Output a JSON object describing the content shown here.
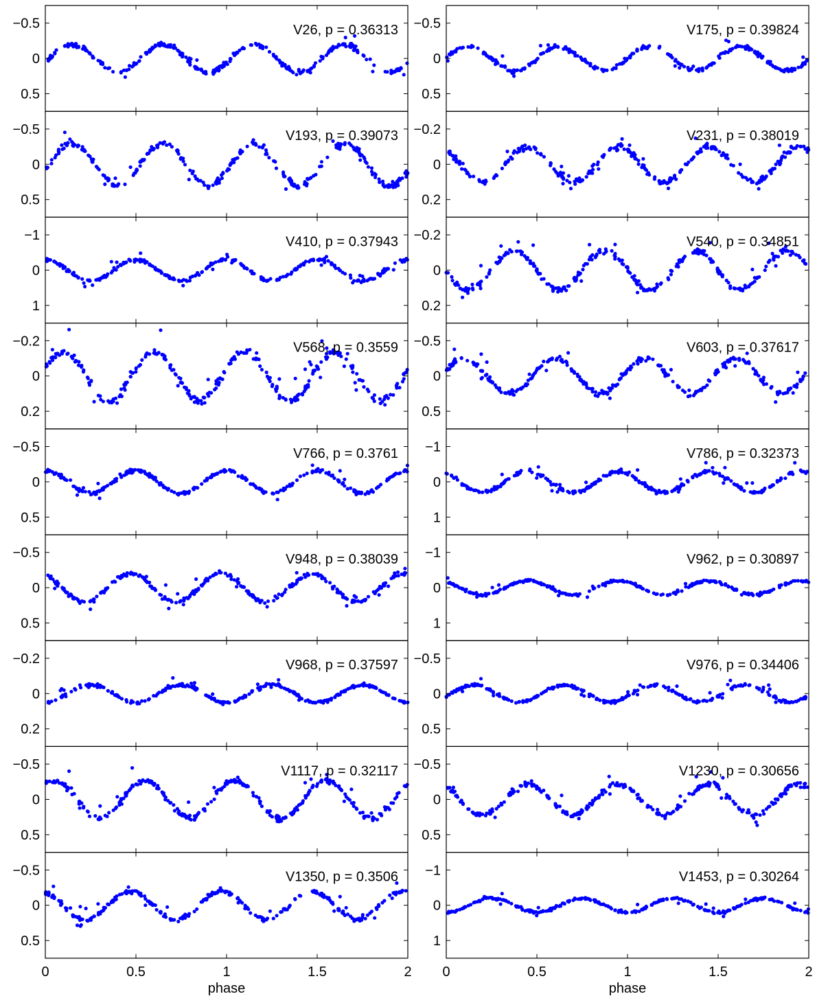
{
  "chart_data": {
    "type": "scatter",
    "marker_color": "#0000ff",
    "xlabel": "phase",
    "xlim": [
      0,
      2
    ],
    "x_ticks": [
      0,
      0.5,
      1,
      1.5,
      2
    ],
    "x_tick_labels": [
      "0",
      "0.5",
      "1",
      "1.5",
      "2"
    ],
    "y_inverted": true,
    "panels": [
      {
        "column": 0,
        "row": 0,
        "label": "V26, p = 0.36313",
        "ylim": [
          -0.75,
          0.75
        ],
        "y_ticks": [
          -0.5,
          0,
          0.5
        ],
        "y_tick_labels": [
          "−0.5",
          "0",
          "0.5"
        ],
        "amplitude": 0.2,
        "minima": [
          0.4,
          0.9,
          1.4,
          1.9
        ],
        "maxima": [
          0.15,
          0.65,
          1.15,
          1.65
        ]
      },
      {
        "column": 1,
        "row": 0,
        "label": "V175, p = 0.39824",
        "ylim": [
          -0.75,
          0.75
        ],
        "y_ticks": [
          -0.5,
          0,
          0.5
        ],
        "y_tick_labels": [
          "−0.5",
          "0",
          "0.5"
        ],
        "amplitude": 0.17,
        "minima": [
          0.38,
          0.88,
          1.38,
          1.88
        ],
        "maxima": [
          0.12,
          0.62,
          1.12,
          1.62
        ]
      },
      {
        "column": 0,
        "row": 1,
        "label": "V193, p = 0.39073",
        "ylim": [
          -0.75,
          0.75
        ],
        "y_ticks": [
          -0.5,
          0,
          0.5
        ],
        "y_tick_labels": [
          "−0.5",
          "0",
          "0.5"
        ],
        "amplitude": 0.3,
        "minima": [
          0.4,
          0.9,
          1.4,
          1.9
        ],
        "maxima": [
          0.15,
          0.65,
          1.15,
          1.65
        ]
      },
      {
        "column": 1,
        "row": 1,
        "label": "V231, p = 0.38019",
        "ylim": [
          -0.3,
          0.3
        ],
        "y_ticks": [
          -0.2,
          0,
          0.2
        ],
        "y_tick_labels": [
          "−0.2",
          "0",
          "0.2"
        ],
        "amplitude": 0.1,
        "minima": [
          0.2,
          0.7,
          1.2,
          1.7
        ],
        "maxima": [
          0.45,
          0.95,
          1.45,
          1.95
        ]
      },
      {
        "column": 0,
        "row": 2,
        "label": "V410, p = 0.37943",
        "ylim": [
          -1.5,
          1.5
        ],
        "y_ticks": [
          -1,
          0,
          1
        ],
        "y_tick_labels": [
          "−1",
          "0",
          "1"
        ],
        "amplitude": 0.3,
        "minima": [
          0.25,
          0.75,
          1.25,
          1.75
        ],
        "maxima": [
          0.0,
          0.5,
          1.0,
          1.5,
          2.0
        ]
      },
      {
        "column": 1,
        "row": 2,
        "label": "V540, p = 0.34851",
        "ylim": [
          -0.3,
          0.3
        ],
        "y_ticks": [
          -0.2,
          0,
          0.2
        ],
        "y_tick_labels": [
          "−0.2",
          "0",
          "0.2"
        ],
        "amplitude": 0.11,
        "minima": [
          0.12,
          0.62,
          1.12,
          1.62
        ],
        "maxima": [
          0.38,
          0.88,
          1.38,
          1.88
        ]
      },
      {
        "column": 0,
        "row": 3,
        "label": "V568, p = 0.3559",
        "ylim": [
          -0.3,
          0.3
        ],
        "y_ticks": [
          -0.2,
          0,
          0.2
        ],
        "y_tick_labels": [
          "−0.2",
          "0",
          "0.2"
        ],
        "amplitude": 0.14,
        "minima": [
          0.35,
          0.85,
          1.35,
          1.85
        ],
        "maxima": [
          0.1,
          0.6,
          1.1,
          1.6
        ]
      },
      {
        "column": 1,
        "row": 3,
        "label": "V603, p = 0.37617",
        "ylim": [
          -0.75,
          0.75
        ],
        "y_ticks": [
          -0.5,
          0,
          0.5
        ],
        "y_tick_labels": [
          "−0.5",
          "0",
          "0.5"
        ],
        "amplitude": 0.25,
        "minima": [
          0.35,
          0.85,
          1.35,
          1.85
        ],
        "maxima": [
          0.1,
          0.6,
          1.1,
          1.6
        ]
      },
      {
        "column": 0,
        "row": 4,
        "label": "V766, p = 0.3761",
        "ylim": [
          -0.75,
          0.75
        ],
        "y_ticks": [
          -0.5,
          0,
          0.5
        ],
        "y_tick_labels": [
          "−0.5",
          "0",
          "0.5"
        ],
        "amplitude": 0.16,
        "minima": [
          0.25,
          0.75,
          1.25,
          1.75
        ],
        "maxima": [
          0.0,
          0.5,
          1.0,
          1.5,
          2.0
        ]
      },
      {
        "column": 1,
        "row": 4,
        "label": "V786, p = 0.32373",
        "ylim": [
          -1.5,
          1.5
        ],
        "y_ticks": [
          -1,
          0,
          1
        ],
        "y_tick_labels": [
          "−1",
          "0",
          "1"
        ],
        "amplitude": 0.3,
        "minima": [
          0.2,
          0.7,
          1.2,
          1.7
        ],
        "maxima": [
          0.45,
          0.95,
          1.45,
          1.95
        ]
      },
      {
        "column": 0,
        "row": 5,
        "label": "V948, p = 0.38039",
        "ylim": [
          -0.75,
          0.75
        ],
        "y_ticks": [
          -0.5,
          0,
          0.5
        ],
        "y_tick_labels": [
          "−0.5",
          "0",
          "0.5"
        ],
        "amplitude": 0.2,
        "minima": [
          0.22,
          0.72,
          1.22,
          1.72
        ],
        "maxima": [
          0.47,
          0.97,
          1.47,
          1.97
        ]
      },
      {
        "column": 1,
        "row": 5,
        "label": "V962, p = 0.30897",
        "ylim": [
          -1.5,
          1.5
        ],
        "y_ticks": [
          -1,
          0,
          1
        ],
        "y_tick_labels": [
          "−1",
          "0",
          "1"
        ],
        "amplitude": 0.2,
        "minima": [
          0.2,
          0.7,
          1.2,
          1.7
        ],
        "maxima": [
          0.45,
          0.95,
          1.45,
          1.95
        ]
      },
      {
        "column": 0,
        "row": 6,
        "label": "V968, p = 0.37597",
        "ylim": [
          -0.3,
          0.3
        ],
        "y_ticks": [
          -0.2,
          0,
          0.2
        ],
        "y_tick_labels": [
          "−0.2",
          "0",
          "0.2"
        ],
        "amplitude": 0.05,
        "minima": [
          0.0,
          0.5,
          1.0,
          1.5,
          2.0
        ],
        "maxima": [
          0.25,
          0.75,
          1.25,
          1.75
        ]
      },
      {
        "column": 1,
        "row": 6,
        "label": "V976, p = 0.34406",
        "ylim": [
          -0.75,
          0.75
        ],
        "y_ticks": [
          -0.5,
          0,
          0.5
        ],
        "y_tick_labels": [
          "−0.5",
          "0",
          "0.5"
        ],
        "amplitude": 0.12,
        "minima": [
          0.4,
          0.9,
          1.4,
          1.9
        ],
        "maxima": [
          0.15,
          0.65,
          1.15,
          1.65
        ]
      },
      {
        "column": 0,
        "row": 7,
        "label": "V1117, p = 0.32117",
        "ylim": [
          -0.75,
          0.75
        ],
        "y_ticks": [
          -0.5,
          0,
          0.5
        ],
        "y_tick_labels": [
          "−0.5",
          "0",
          "0.5"
        ],
        "amplitude": 0.27,
        "minima": [
          0.3,
          0.8,
          1.3,
          1.8
        ],
        "maxima": [
          0.05,
          0.55,
          1.05,
          1.55
        ]
      },
      {
        "column": 1,
        "row": 7,
        "label": "V1230, p = 0.30656",
        "ylim": [
          -0.75,
          0.75
        ],
        "y_ticks": [
          -0.5,
          0,
          0.5
        ],
        "y_tick_labels": [
          "−0.5",
          "0",
          "0.5"
        ],
        "amplitude": 0.22,
        "minima": [
          0.2,
          0.7,
          1.2,
          1.7
        ],
        "maxima": [
          0.45,
          0.95,
          1.45,
          1.95
        ]
      },
      {
        "column": 0,
        "row": 8,
        "label": "V1350, p = 0.3506",
        "ylim": [
          -0.75,
          0.75
        ],
        "y_ticks": [
          -0.5,
          0,
          0.5
        ],
        "y_tick_labels": [
          "−0.5",
          "0",
          "0.5"
        ],
        "amplitude": 0.2,
        "minima": [
          0.22,
          0.72,
          1.22,
          1.72
        ],
        "maxima": [
          0.47,
          0.97,
          1.47,
          1.97
        ]
      },
      {
        "column": 1,
        "row": 8,
        "label": "V1453, p = 0.30264",
        "ylim": [
          -1.5,
          1.5
        ],
        "y_ticks": [
          -1,
          0,
          1
        ],
        "y_tick_labels": [
          "−1",
          "0",
          "1"
        ],
        "amplitude": 0.2,
        "minima": [
          0.0,
          0.5,
          1.0,
          1.5,
          2.0
        ],
        "maxima": [
          0.25,
          0.75,
          1.25,
          1.75
        ]
      }
    ]
  }
}
